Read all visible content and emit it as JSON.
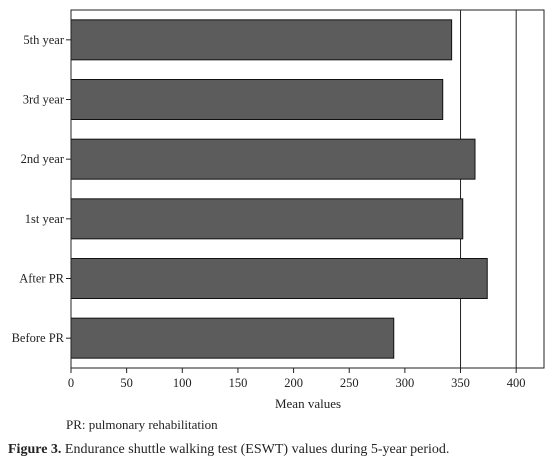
{
  "chart_data": {
    "type": "bar",
    "orientation": "horizontal",
    "categories": [
      "Before PR",
      "After PR",
      "1st year",
      "2nd year",
      "3rd year",
      "5th year"
    ],
    "values": [
      290,
      374,
      352,
      363,
      334,
      342
    ],
    "xlabel": "Mean values",
    "xlim": [
      0,
      425
    ],
    "xticks": [
      0,
      50,
      100,
      150,
      200,
      250,
      300,
      350,
      400
    ],
    "grid": "vertical lines at 350 and 400",
    "bar_color": "#5c5c5c"
  },
  "footnote": "PR: pulmonary rehabilitation",
  "caption": {
    "label": "Figure 3.",
    "text": " Endurance shuttle walking test (ESWT) values during 5-year period."
  }
}
